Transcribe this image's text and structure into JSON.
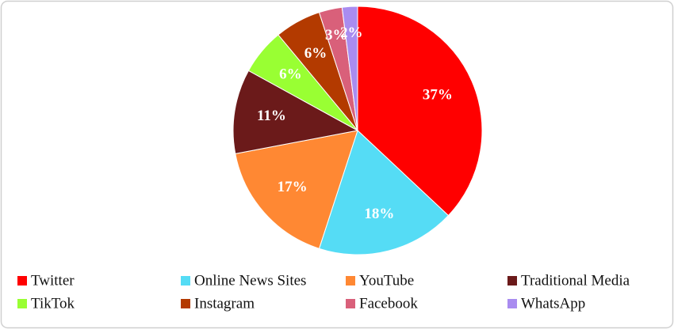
{
  "chart_data": {
    "type": "pie",
    "categories": [
      "Twitter",
      "Online News Sites",
      "YouTube",
      "Traditional Media",
      "TikTok",
      "Instagram",
      "Facebook",
      "WhatsApp"
    ],
    "values": [
      37,
      18,
      17,
      11,
      6,
      6,
      3,
      2
    ],
    "value_labels": [
      "37%",
      "18%",
      "17%",
      "11%",
      "6%",
      "6%",
      "3%",
      "2%"
    ],
    "colors": [
      "#ff0000",
      "#55dcf5",
      "#ff8833",
      "#6b1a1a",
      "#99ff33",
      "#b33a00",
      "#d9607a",
      "#a98cf0"
    ],
    "legend": "bottom"
  }
}
